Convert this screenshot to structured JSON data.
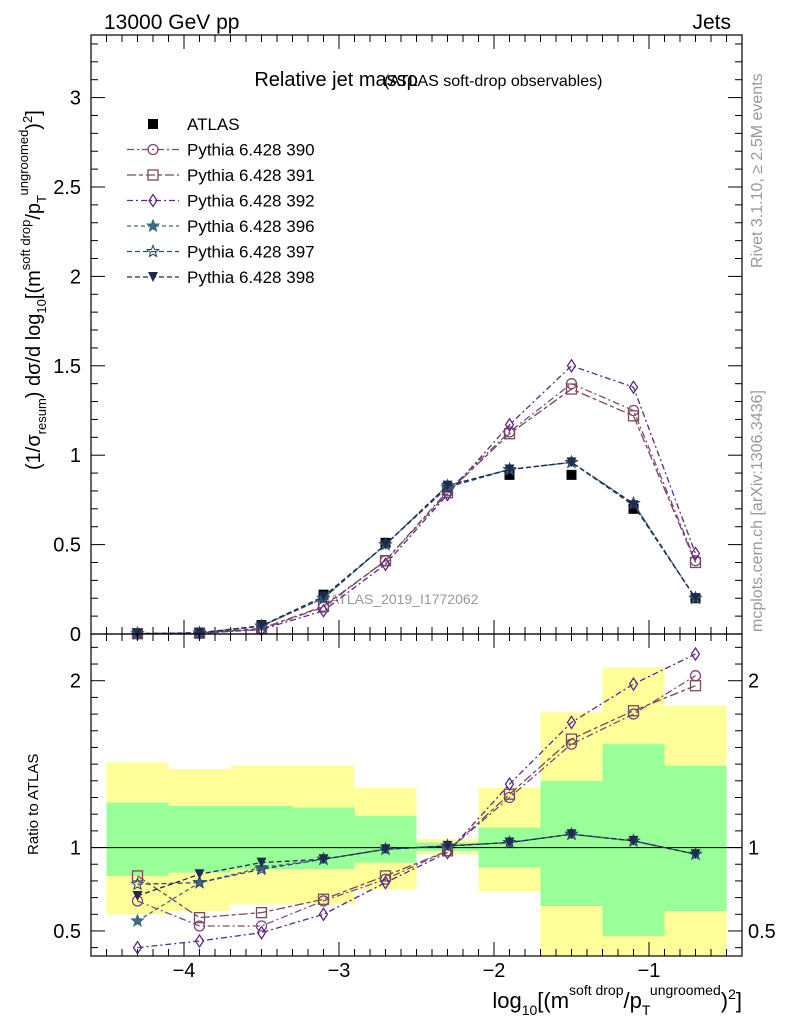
{
  "header": {
    "left": "13000 GeV pp",
    "right": "Jets",
    "side_top": "Rivet 3.1.10, ≥ 2.5M events",
    "side_bottom": "mcplots.cern.ch [arXiv:1306.3436]"
  },
  "main_plot": {
    "title": "Relative jet massρ",
    "title_sub": "(ATLAS soft-drop observables)",
    "watermark": "ATLAS_2019_I1772062",
    "ylabel_parts": [
      "(1/σ",
      "resum",
      ") dσ/d log",
      "10",
      "[(m",
      "soft drop",
      "/p",
      "T",
      "ungroomed",
      ")",
      "2",
      "]"
    ]
  },
  "ratio_plot": {
    "ylabel": "Ratio to ATLAS"
  },
  "xlabel_parts": [
    "log",
    "10",
    "[(m",
    "soft drop",
    "/p",
    "T",
    "ungroomed",
    ")",
    "2",
    "]"
  ],
  "colors": {
    "data": "#000000",
    "s390": "#7b4a7c",
    "s391": "#7b4a5e",
    "s392": "#5a2a86",
    "s396": "#3c6a7e",
    "s397": "#2c4f6e",
    "s398": "#1f2a4e",
    "band_inner": "#99ff99",
    "band_outer": "#ffff99"
  },
  "chart_data": [
    {
      "type": "line",
      "panel": "main",
      "xlim": [
        -4.6,
        -0.4
      ],
      "ylim": [
        0,
        3.35
      ],
      "yticks": [
        0,
        0.5,
        1,
        1.5,
        2,
        2.5,
        3
      ],
      "ytick_labels": [
        "0",
        "0.5",
        "1",
        "1.5",
        "2",
        "2.5",
        "3"
      ],
      "x": [
        -4.3,
        -3.9,
        -3.5,
        -3.1,
        -2.7,
        -2.3,
        -1.9,
        -1.5,
        -1.1,
        -0.7
      ],
      "series": [
        {
          "name": "ATLAS",
          "key": "data",
          "marker": "square-filled",
          "values": [
            0.003,
            0.008,
            0.05,
            0.22,
            0.51,
            0.82,
            0.89,
            0.89,
            0.7,
            0.2
          ]
        },
        {
          "name": "Pythia 6.428 390",
          "key": "s390",
          "marker": "circle",
          "values": [
            0.002,
            0.004,
            0.027,
            0.15,
            0.41,
            0.8,
            1.13,
            1.4,
            1.25,
            0.41
          ]
        },
        {
          "name": "Pythia 6.428 391",
          "key": "s391",
          "marker": "square",
          "values": [
            0.002,
            0.005,
            0.031,
            0.155,
            0.41,
            0.79,
            1.12,
            1.37,
            1.22,
            0.4
          ]
        },
        {
          "name": "Pythia 6.428 392",
          "key": "s392",
          "marker": "diamond",
          "values": [
            0.001,
            0.004,
            0.025,
            0.13,
            0.39,
            0.78,
            1.17,
            1.5,
            1.38,
            0.45
          ]
        },
        {
          "name": "Pythia 6.428 396",
          "key": "s396",
          "marker": "star-filled",
          "values": [
            0.002,
            0.006,
            0.045,
            0.2,
            0.5,
            0.83,
            0.92,
            0.96,
            0.73,
            0.2
          ]
        },
        {
          "name": "Pythia 6.428 397",
          "key": "s397",
          "marker": "star",
          "values": [
            0.002,
            0.006,
            0.044,
            0.2,
            0.5,
            0.82,
            0.92,
            0.96,
            0.73,
            0.2
          ]
        },
        {
          "name": "Pythia 6.428 398",
          "key": "s398",
          "marker": "triangle-down-filled",
          "values": [
            0.002,
            0.007,
            0.046,
            0.21,
            0.5,
            0.83,
            0.92,
            0.96,
            0.72,
            0.2
          ]
        }
      ]
    },
    {
      "type": "line",
      "panel": "ratio",
      "xlim": [
        -4.6,
        -0.4
      ],
      "ylim": [
        0.35,
        2.28
      ],
      "xticks": [
        -4,
        -3,
        -2,
        -1
      ],
      "xtick_labels": [
        "−4",
        "−3",
        "−2",
        "−1"
      ],
      "yticks": [
        0.5,
        1,
        2
      ],
      "ytick_labels": [
        "0.5",
        "1",
        "2"
      ],
      "x": [
        -4.3,
        -3.9,
        -3.5,
        -3.1,
        -2.7,
        -2.3,
        -1.9,
        -1.5,
        -1.1,
        -0.7
      ],
      "bands": {
        "edges": [
          -4.5,
          -4.1,
          -3.7,
          -3.3,
          -2.9,
          -2.5,
          -2.1,
          -1.7,
          -1.3,
          -0.9,
          -0.5
        ],
        "inner_low": [
          0.83,
          0.85,
          0.87,
          0.87,
          0.91,
          0.98,
          0.88,
          0.65,
          0.47,
          0.62
        ],
        "inner_high": [
          1.27,
          1.25,
          1.25,
          1.24,
          1.19,
          1.03,
          1.12,
          1.4,
          1.62,
          1.49
        ],
        "outer_low": [
          0.6,
          0.62,
          0.66,
          0.66,
          0.75,
          0.96,
          0.74,
          0.3,
          0.3,
          0.3
        ],
        "outer_high": [
          1.51,
          1.47,
          1.49,
          1.49,
          1.36,
          1.05,
          1.36,
          1.81,
          2.08,
          1.85
        ]
      },
      "series": [
        {
          "name": "Pythia 6.428 390",
          "key": "s390",
          "marker": "circle",
          "values": [
            0.68,
            0.53,
            0.53,
            0.68,
            0.81,
            0.98,
            1.3,
            1.62,
            1.8,
            2.03
          ]
        },
        {
          "name": "Pythia 6.428 391",
          "key": "s391",
          "marker": "square",
          "values": [
            0.83,
            0.58,
            0.61,
            0.69,
            0.83,
            0.98,
            1.32,
            1.65,
            1.82,
            1.97
          ]
        },
        {
          "name": "Pythia 6.428 392",
          "key": "s392",
          "marker": "diamond",
          "values": [
            0.4,
            0.44,
            0.49,
            0.6,
            0.79,
            0.97,
            1.38,
            1.75,
            1.98,
            2.16
          ]
        },
        {
          "name": "Pythia 6.428 396",
          "key": "s396",
          "marker": "star-filled",
          "values": [
            0.56,
            0.79,
            0.88,
            0.93,
            0.99,
            1.01,
            1.03,
            1.08,
            1.04,
            0.96
          ]
        },
        {
          "name": "Pythia 6.428 397",
          "key": "s397",
          "marker": "star",
          "values": [
            0.78,
            0.79,
            0.87,
            0.93,
            0.99,
            1.01,
            1.03,
            1.08,
            1.04,
            0.96
          ]
        },
        {
          "name": "Pythia 6.428 398",
          "key": "s398",
          "marker": "triangle-down-filled",
          "values": [
            0.71,
            0.84,
            0.91,
            0.93,
            0.99,
            1.01,
            1.03,
            1.08,
            1.04,
            0.96
          ]
        }
      ]
    }
  ]
}
